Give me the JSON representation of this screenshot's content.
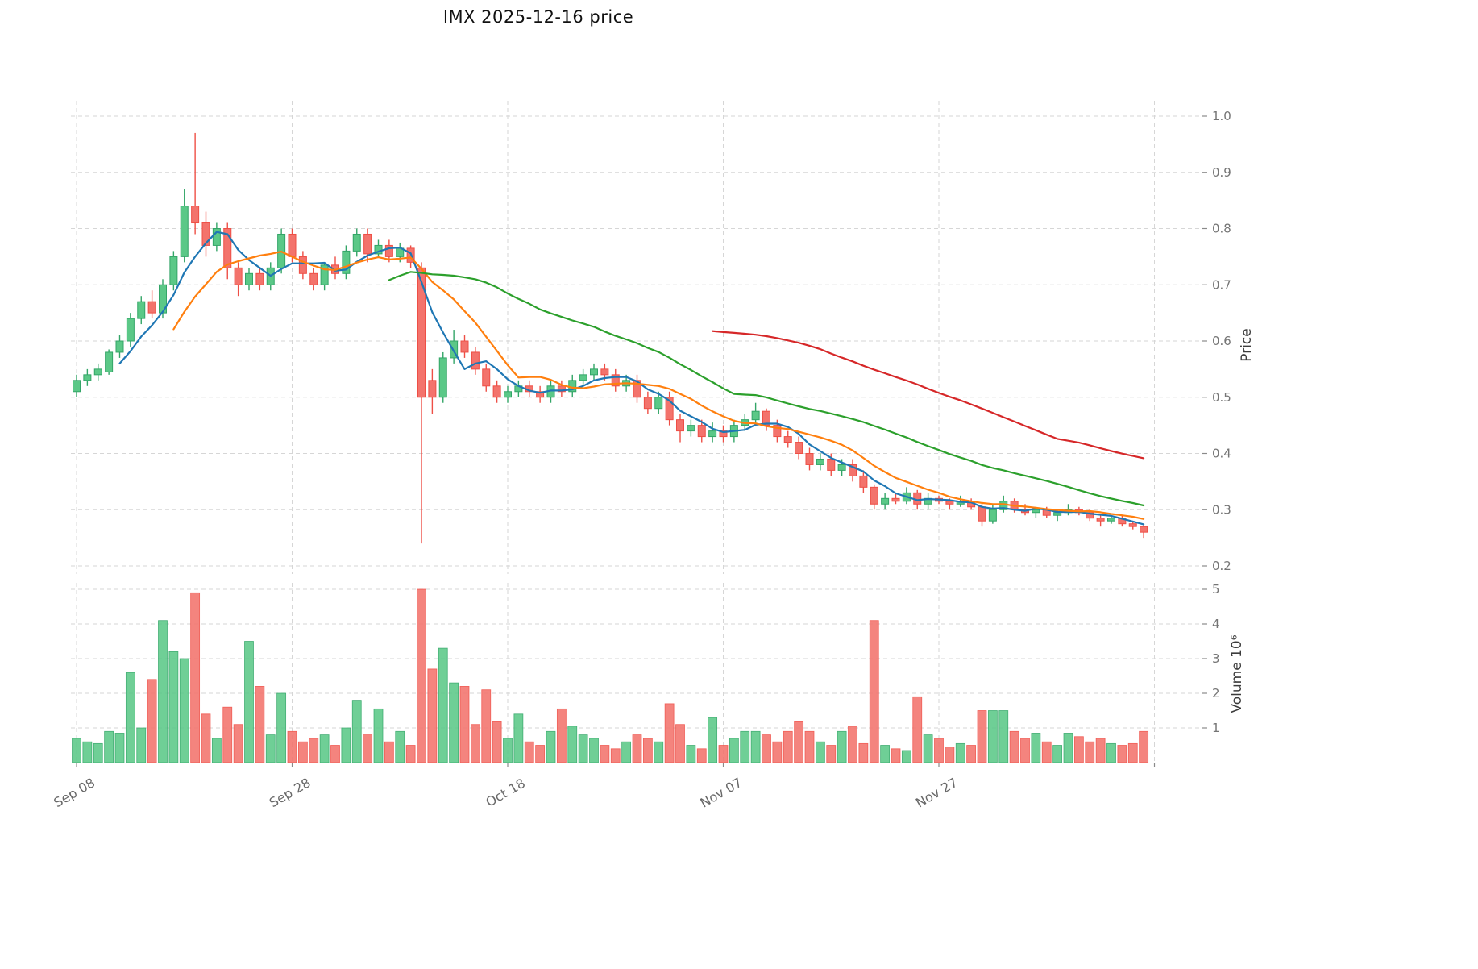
{
  "chart_data": {
    "type": "candlestick",
    "title": "IMX  2025-12-16  price",
    "grid": true,
    "legend_position": "none",
    "price_axis": {
      "label": "Price",
      "ticks": [
        "0.2",
        "0.3",
        "0.4",
        "0.5",
        "0.6",
        "0.7",
        "0.8",
        "0.9",
        "1.0"
      ],
      "range": [
        0.186,
        1.027
      ]
    },
    "volume_axis": {
      "label": "Volume  10⁶",
      "ticks": [
        "1",
        "2",
        "3",
        "4",
        "5"
      ],
      "range": [
        0,
        5.1
      ]
    },
    "x_axis": {
      "ticks": [
        {
          "index": 0,
          "label": "Sep 08"
        },
        {
          "index": 20,
          "label": "Sep 28"
        },
        {
          "index": 40,
          "label": "Oct 18"
        },
        {
          "index": 60,
          "label": "Nov 07"
        },
        {
          "index": 80,
          "label": "Nov 27"
        }
      ],
      "extra_gridline_index": 100
    },
    "candles": {
      "open": [
        0.51,
        0.53,
        0.54,
        0.545,
        0.58,
        0.6,
        0.64,
        0.67,
        0.65,
        0.7,
        0.75,
        0.84,
        0.81,
        0.77,
        0.8,
        0.73,
        0.7,
        0.72,
        0.7,
        0.73,
        0.79,
        0.75,
        0.72,
        0.7,
        0.735,
        0.72,
        0.76,
        0.79,
        0.755,
        0.77,
        0.75,
        0.765,
        0.73,
        0.53,
        0.5,
        0.57,
        0.6,
        0.58,
        0.55,
        0.52,
        0.5,
        0.51,
        0.52,
        0.51,
        0.5,
        0.52,
        0.51,
        0.53,
        0.54,
        0.55,
        0.54,
        0.52,
        0.53,
        0.5,
        0.48,
        0.5,
        0.46,
        0.44,
        0.45,
        0.43,
        0.44,
        0.43,
        0.45,
        0.46,
        0.475,
        0.45,
        0.43,
        0.42,
        0.4,
        0.38,
        0.39,
        0.37,
        0.38,
        0.36,
        0.34,
        0.31,
        0.32,
        0.315,
        0.33,
        0.31,
        0.32,
        0.315,
        0.31,
        0.315,
        0.305,
        0.28,
        0.3,
        0.315,
        0.3,
        0.295,
        0.3,
        0.29,
        0.295,
        0.3,
        0.295,
        0.285,
        0.28,
        0.285,
        0.275,
        0.27
      ],
      "high": [
        0.54,
        0.55,
        0.56,
        0.585,
        0.61,
        0.65,
        0.68,
        0.69,
        0.71,
        0.76,
        0.87,
        0.97,
        0.83,
        0.81,
        0.81,
        0.74,
        0.73,
        0.73,
        0.74,
        0.8,
        0.8,
        0.76,
        0.73,
        0.74,
        0.75,
        0.77,
        0.8,
        0.8,
        0.78,
        0.78,
        0.775,
        0.77,
        0.74,
        0.55,
        0.58,
        0.62,
        0.61,
        0.59,
        0.56,
        0.53,
        0.52,
        0.53,
        0.53,
        0.52,
        0.53,
        0.53,
        0.54,
        0.55,
        0.56,
        0.56,
        0.55,
        0.54,
        0.54,
        0.51,
        0.51,
        0.51,
        0.47,
        0.46,
        0.46,
        0.455,
        0.45,
        0.46,
        0.47,
        0.49,
        0.48,
        0.46,
        0.44,
        0.43,
        0.41,
        0.4,
        0.4,
        0.39,
        0.39,
        0.37,
        0.345,
        0.33,
        0.33,
        0.34,
        0.335,
        0.33,
        0.325,
        0.32,
        0.325,
        0.32,
        0.31,
        0.31,
        0.325,
        0.32,
        0.31,
        0.305,
        0.305,
        0.3,
        0.31,
        0.305,
        0.3,
        0.29,
        0.29,
        0.29,
        0.28,
        0.275
      ],
      "low": [
        0.5,
        0.52,
        0.53,
        0.54,
        0.57,
        0.59,
        0.63,
        0.64,
        0.64,
        0.69,
        0.74,
        0.79,
        0.75,
        0.76,
        0.71,
        0.68,
        0.69,
        0.69,
        0.69,
        0.72,
        0.74,
        0.71,
        0.69,
        0.69,
        0.71,
        0.71,
        0.75,
        0.74,
        0.75,
        0.74,
        0.74,
        0.73,
        0.24,
        0.47,
        0.49,
        0.56,
        0.57,
        0.54,
        0.51,
        0.49,
        0.49,
        0.5,
        0.5,
        0.49,
        0.49,
        0.5,
        0.5,
        0.52,
        0.53,
        0.53,
        0.51,
        0.51,
        0.49,
        0.47,
        0.47,
        0.45,
        0.42,
        0.43,
        0.42,
        0.42,
        0.42,
        0.42,
        0.44,
        0.45,
        0.44,
        0.42,
        0.41,
        0.39,
        0.37,
        0.37,
        0.36,
        0.36,
        0.35,
        0.33,
        0.3,
        0.3,
        0.31,
        0.31,
        0.3,
        0.3,
        0.31,
        0.3,
        0.305,
        0.3,
        0.27,
        0.275,
        0.295,
        0.295,
        0.29,
        0.285,
        0.285,
        0.28,
        0.29,
        0.29,
        0.28,
        0.27,
        0.275,
        0.27,
        0.265,
        0.25
      ],
      "close": [
        0.53,
        0.54,
        0.55,
        0.58,
        0.6,
        0.64,
        0.67,
        0.65,
        0.7,
        0.75,
        0.84,
        0.81,
        0.77,
        0.8,
        0.73,
        0.7,
        0.72,
        0.7,
        0.73,
        0.79,
        0.75,
        0.72,
        0.7,
        0.735,
        0.72,
        0.76,
        0.79,
        0.755,
        0.77,
        0.75,
        0.765,
        0.74,
        0.5,
        0.5,
        0.57,
        0.6,
        0.58,
        0.55,
        0.52,
        0.5,
        0.51,
        0.52,
        0.51,
        0.5,
        0.52,
        0.51,
        0.53,
        0.54,
        0.55,
        0.54,
        0.52,
        0.53,
        0.5,
        0.48,
        0.5,
        0.46,
        0.44,
        0.45,
        0.43,
        0.44,
        0.43,
        0.45,
        0.46,
        0.475,
        0.45,
        0.43,
        0.42,
        0.4,
        0.38,
        0.39,
        0.37,
        0.38,
        0.36,
        0.34,
        0.31,
        0.32,
        0.315,
        0.33,
        0.31,
        0.32,
        0.315,
        0.31,
        0.315,
        0.305,
        0.28,
        0.3,
        0.315,
        0.3,
        0.295,
        0.3,
        0.29,
        0.295,
        0.3,
        0.295,
        0.285,
        0.28,
        0.285,
        0.275,
        0.27,
        0.26
      ]
    },
    "volume": [
      0.7,
      0.6,
      0.55,
      0.9,
      0.85,
      2.6,
      1.0,
      2.4,
      4.1,
      3.2,
      3.0,
      4.9,
      1.4,
      0.7,
      1.6,
      1.1,
      3.5,
      2.2,
      0.8,
      2.0,
      0.9,
      0.6,
      0.7,
      0.8,
      0.5,
      1.0,
      1.8,
      0.8,
      1.55,
      0.6,
      0.9,
      0.5,
      5.0,
      2.7,
      3.3,
      2.3,
      2.2,
      1.1,
      2.1,
      1.2,
      0.7,
      1.4,
      0.6,
      0.5,
      0.9,
      1.55,
      1.05,
      0.8,
      0.7,
      0.5,
      0.4,
      0.6,
      0.8,
      0.7,
      0.6,
      1.7,
      1.1,
      0.5,
      0.4,
      1.3,
      0.5,
      0.7,
      0.9,
      0.9,
      0.8,
      0.6,
      0.9,
      1.2,
      0.9,
      0.6,
      0.5,
      0.9,
      1.05,
      0.55,
      4.1,
      0.5,
      0.4,
      0.35,
      1.9,
      0.8,
      0.7,
      0.45,
      0.55,
      0.5,
      1.5,
      1.5,
      1.5,
      0.9,
      0.7,
      0.85,
      0.6,
      0.5,
      0.85,
      0.75,
      0.6,
      0.7,
      0.55,
      0.5,
      0.55,
      0.9
    ],
    "moving_averages": [
      {
        "window": 5,
        "color": "#1f77b4"
      },
      {
        "window": 10,
        "color": "#ff7f0e"
      },
      {
        "window": 30,
        "color": "#2ca02c"
      },
      {
        "window": 60,
        "color": "#d62728"
      }
    ],
    "colors": {
      "up": "#5bc887",
      "up_edge": "#33a567",
      "down": "#f3736c",
      "down_edge": "#ee4f46",
      "grid": "#d6d6d6",
      "tick_text": "#757575",
      "axis_label_text": "#3c3c3c",
      "title_text": "#111111"
    }
  }
}
